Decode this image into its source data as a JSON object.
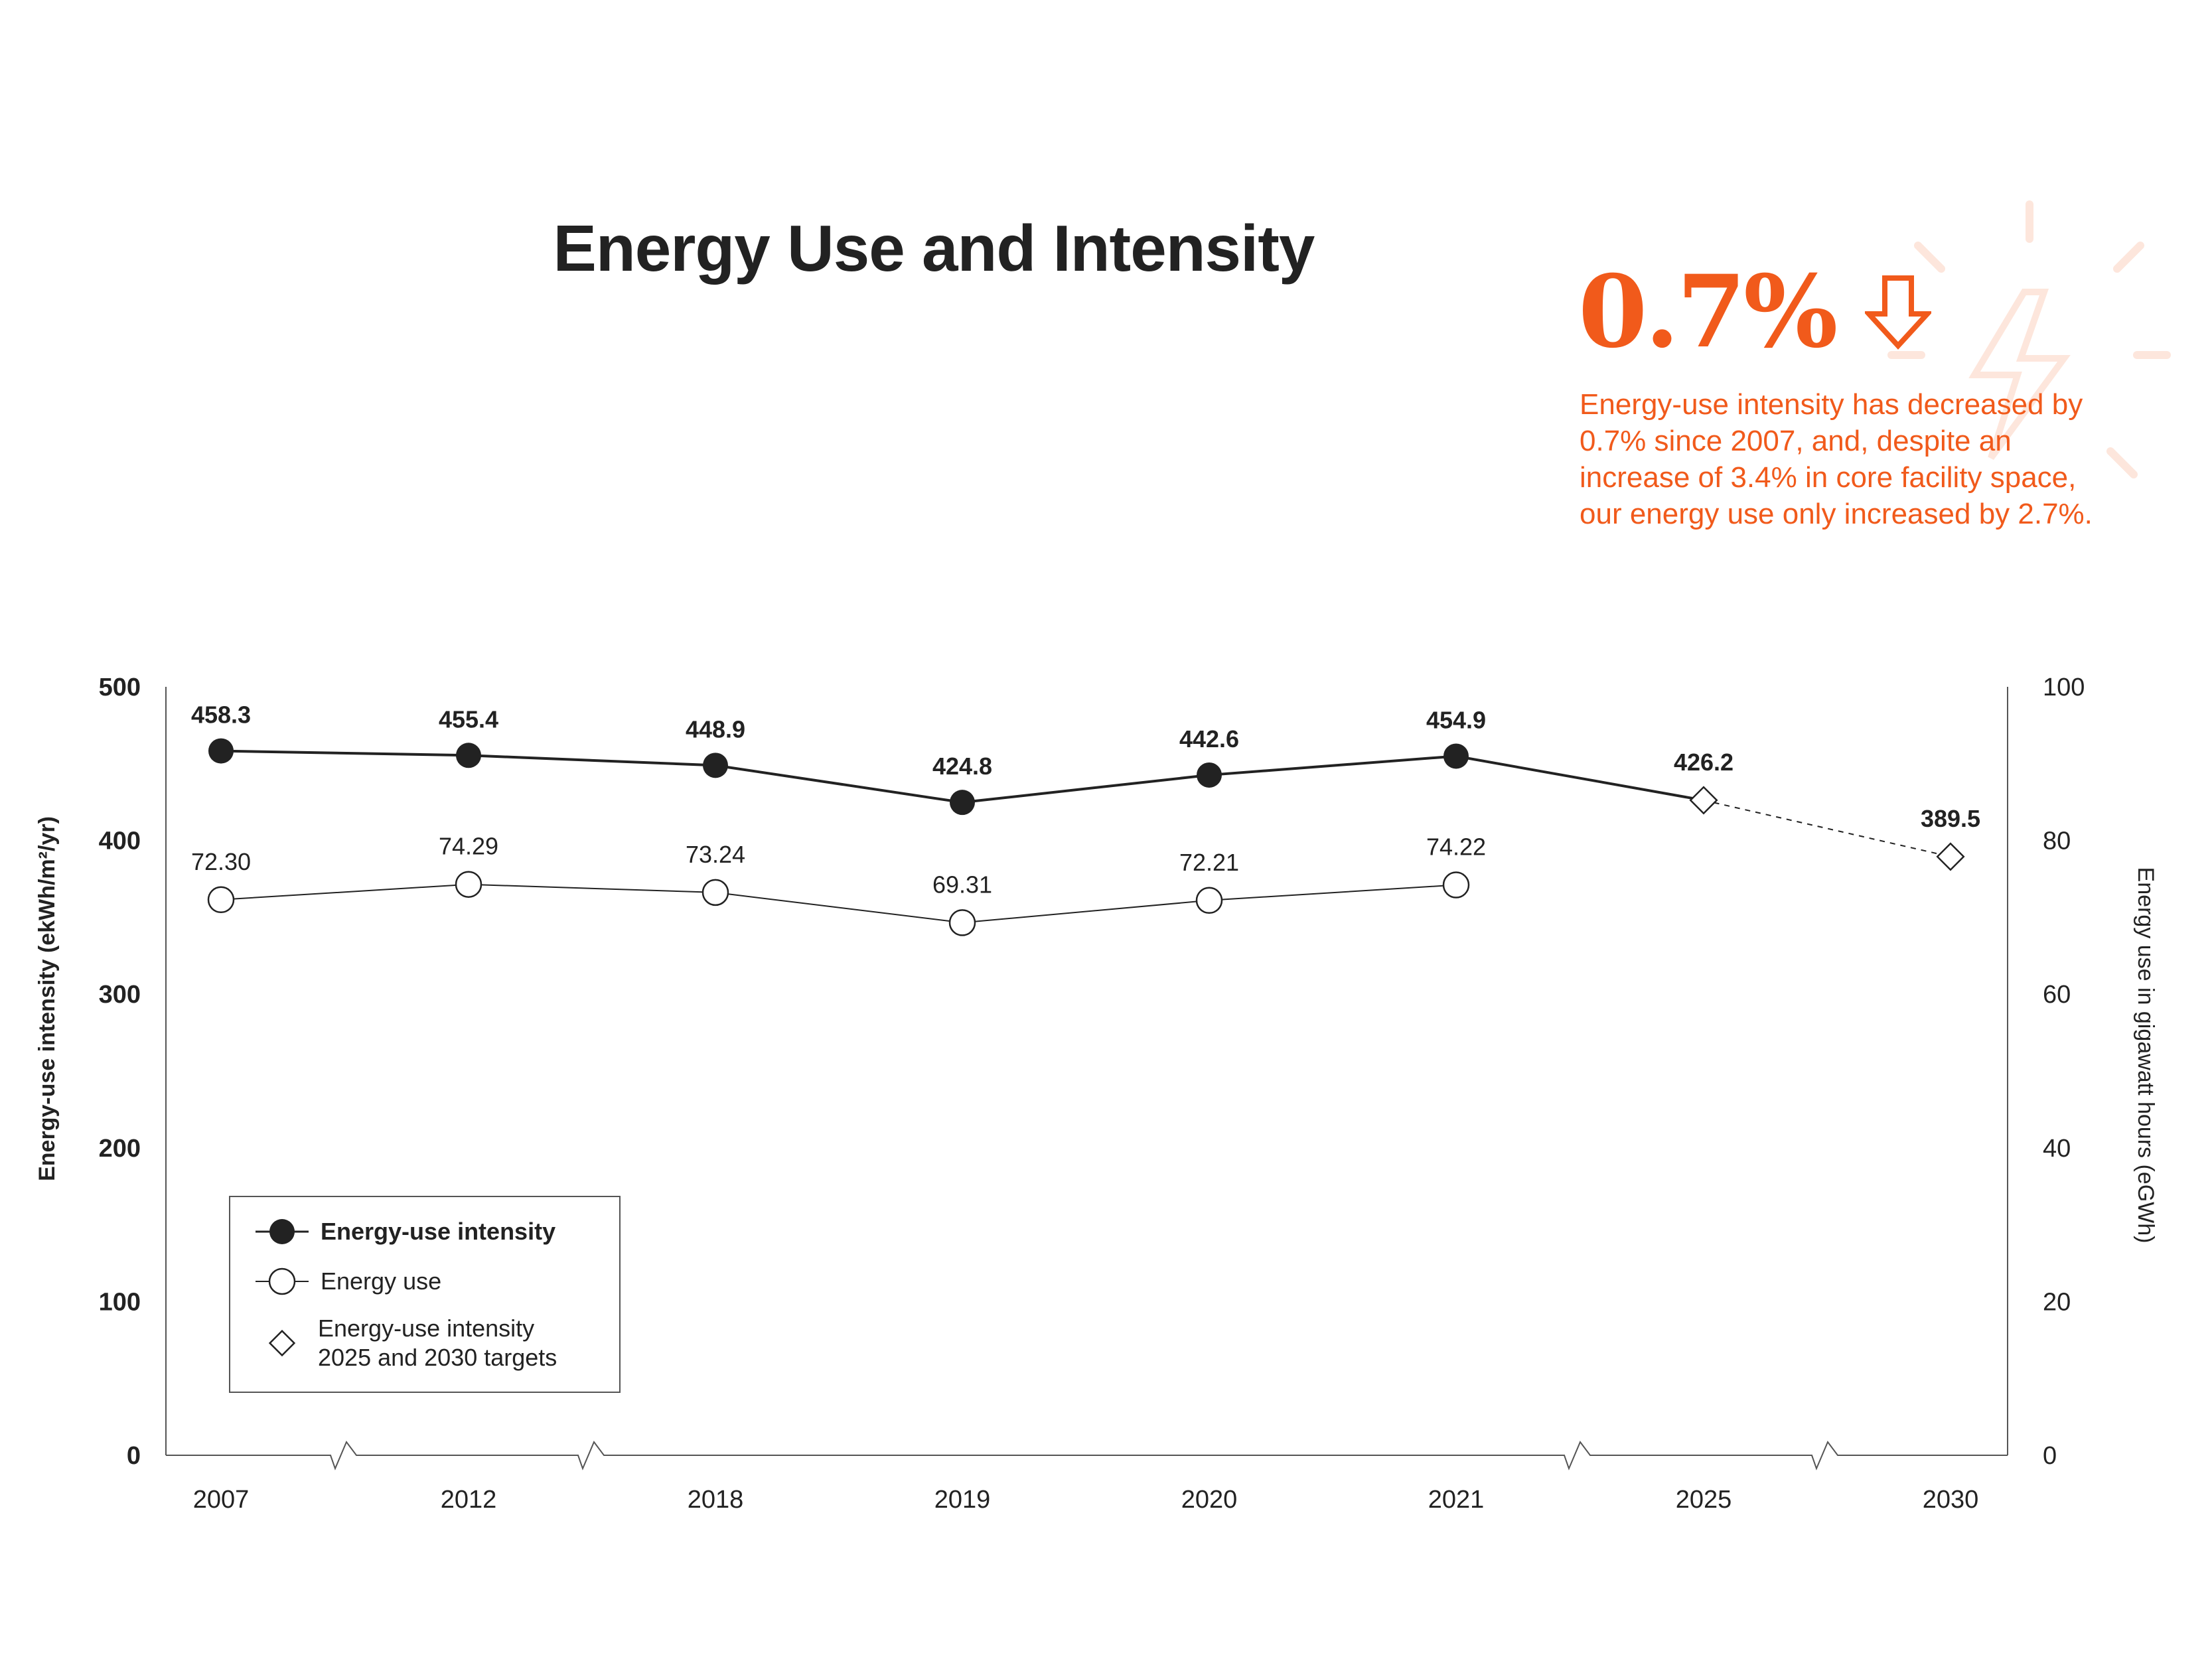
{
  "title": "Energy Use and Intensity",
  "callout": {
    "value": "0.7%",
    "arrow_icon": "down-arrow-icon",
    "text": "Energy-use intensity has decreased by 0.7% since 2007, and, despite an increase of 3.4% in core facility space, our energy use only increased by 2.7%.",
    "decoration_icon": "lightning-bolt-icon"
  },
  "colors": {
    "accent": "#f15a1b",
    "line_dark": "#222222",
    "light_decoration": "#fde6dc"
  },
  "legend": {
    "items": [
      {
        "label": "Energy-use intensity",
        "marker": "filled-circle"
      },
      {
        "label": "Energy use",
        "marker": "open-circle"
      },
      {
        "label_line1": "Energy-use intensity",
        "label_line2": "2025 and 2030 targets",
        "marker": "open-diamond"
      }
    ]
  },
  "chart_data": {
    "type": "line",
    "categories": [
      "2007",
      "2012",
      "2018",
      "2019",
      "2020",
      "2021",
      "2025",
      "2030"
    ],
    "y_left": {
      "label": "Energy-use intensity (ekWh/m²/yr)",
      "ylim": [
        0,
        500
      ],
      "ticks": [
        "0",
        "100",
        "200",
        "300",
        "400",
        "500"
      ]
    },
    "y_right": {
      "label": "Energy use in gigawatt hours (eGWh)",
      "ylim": [
        0,
        100
      ],
      "ticks": [
        "0",
        "20",
        "40",
        "60",
        "80",
        "100"
      ]
    },
    "series": [
      {
        "name": "Energy-use intensity",
        "axis": "left",
        "values": [
          458.3,
          455.4,
          448.9,
          424.8,
          442.6,
          454.9,
          null,
          null
        ],
        "labels": [
          "458.3",
          "455.4",
          "448.9",
          "424.8",
          "442.6",
          "454.9",
          "",
          ""
        ]
      },
      {
        "name": "Energy use",
        "axis": "right",
        "values": [
          72.3,
          74.29,
          73.24,
          69.31,
          72.21,
          74.22,
          null,
          null
        ],
        "labels": [
          "72.30",
          "74.29",
          "73.24",
          "69.31",
          "72.21",
          "74.22",
          "",
          ""
        ]
      },
      {
        "name": "Energy-use intensity 2025 and 2030 targets",
        "axis": "left",
        "values": [
          null,
          null,
          null,
          null,
          null,
          454.9,
          426.2,
          389.5
        ],
        "labels": [
          "",
          "",
          "",
          "",
          "",
          "",
          "426.2",
          "389.5"
        ]
      }
    ],
    "axis_breaks_after": [
      "2007",
      "2012",
      "2021",
      "2025"
    ],
    "grid": false,
    "legend_position": "bottom-left"
  }
}
